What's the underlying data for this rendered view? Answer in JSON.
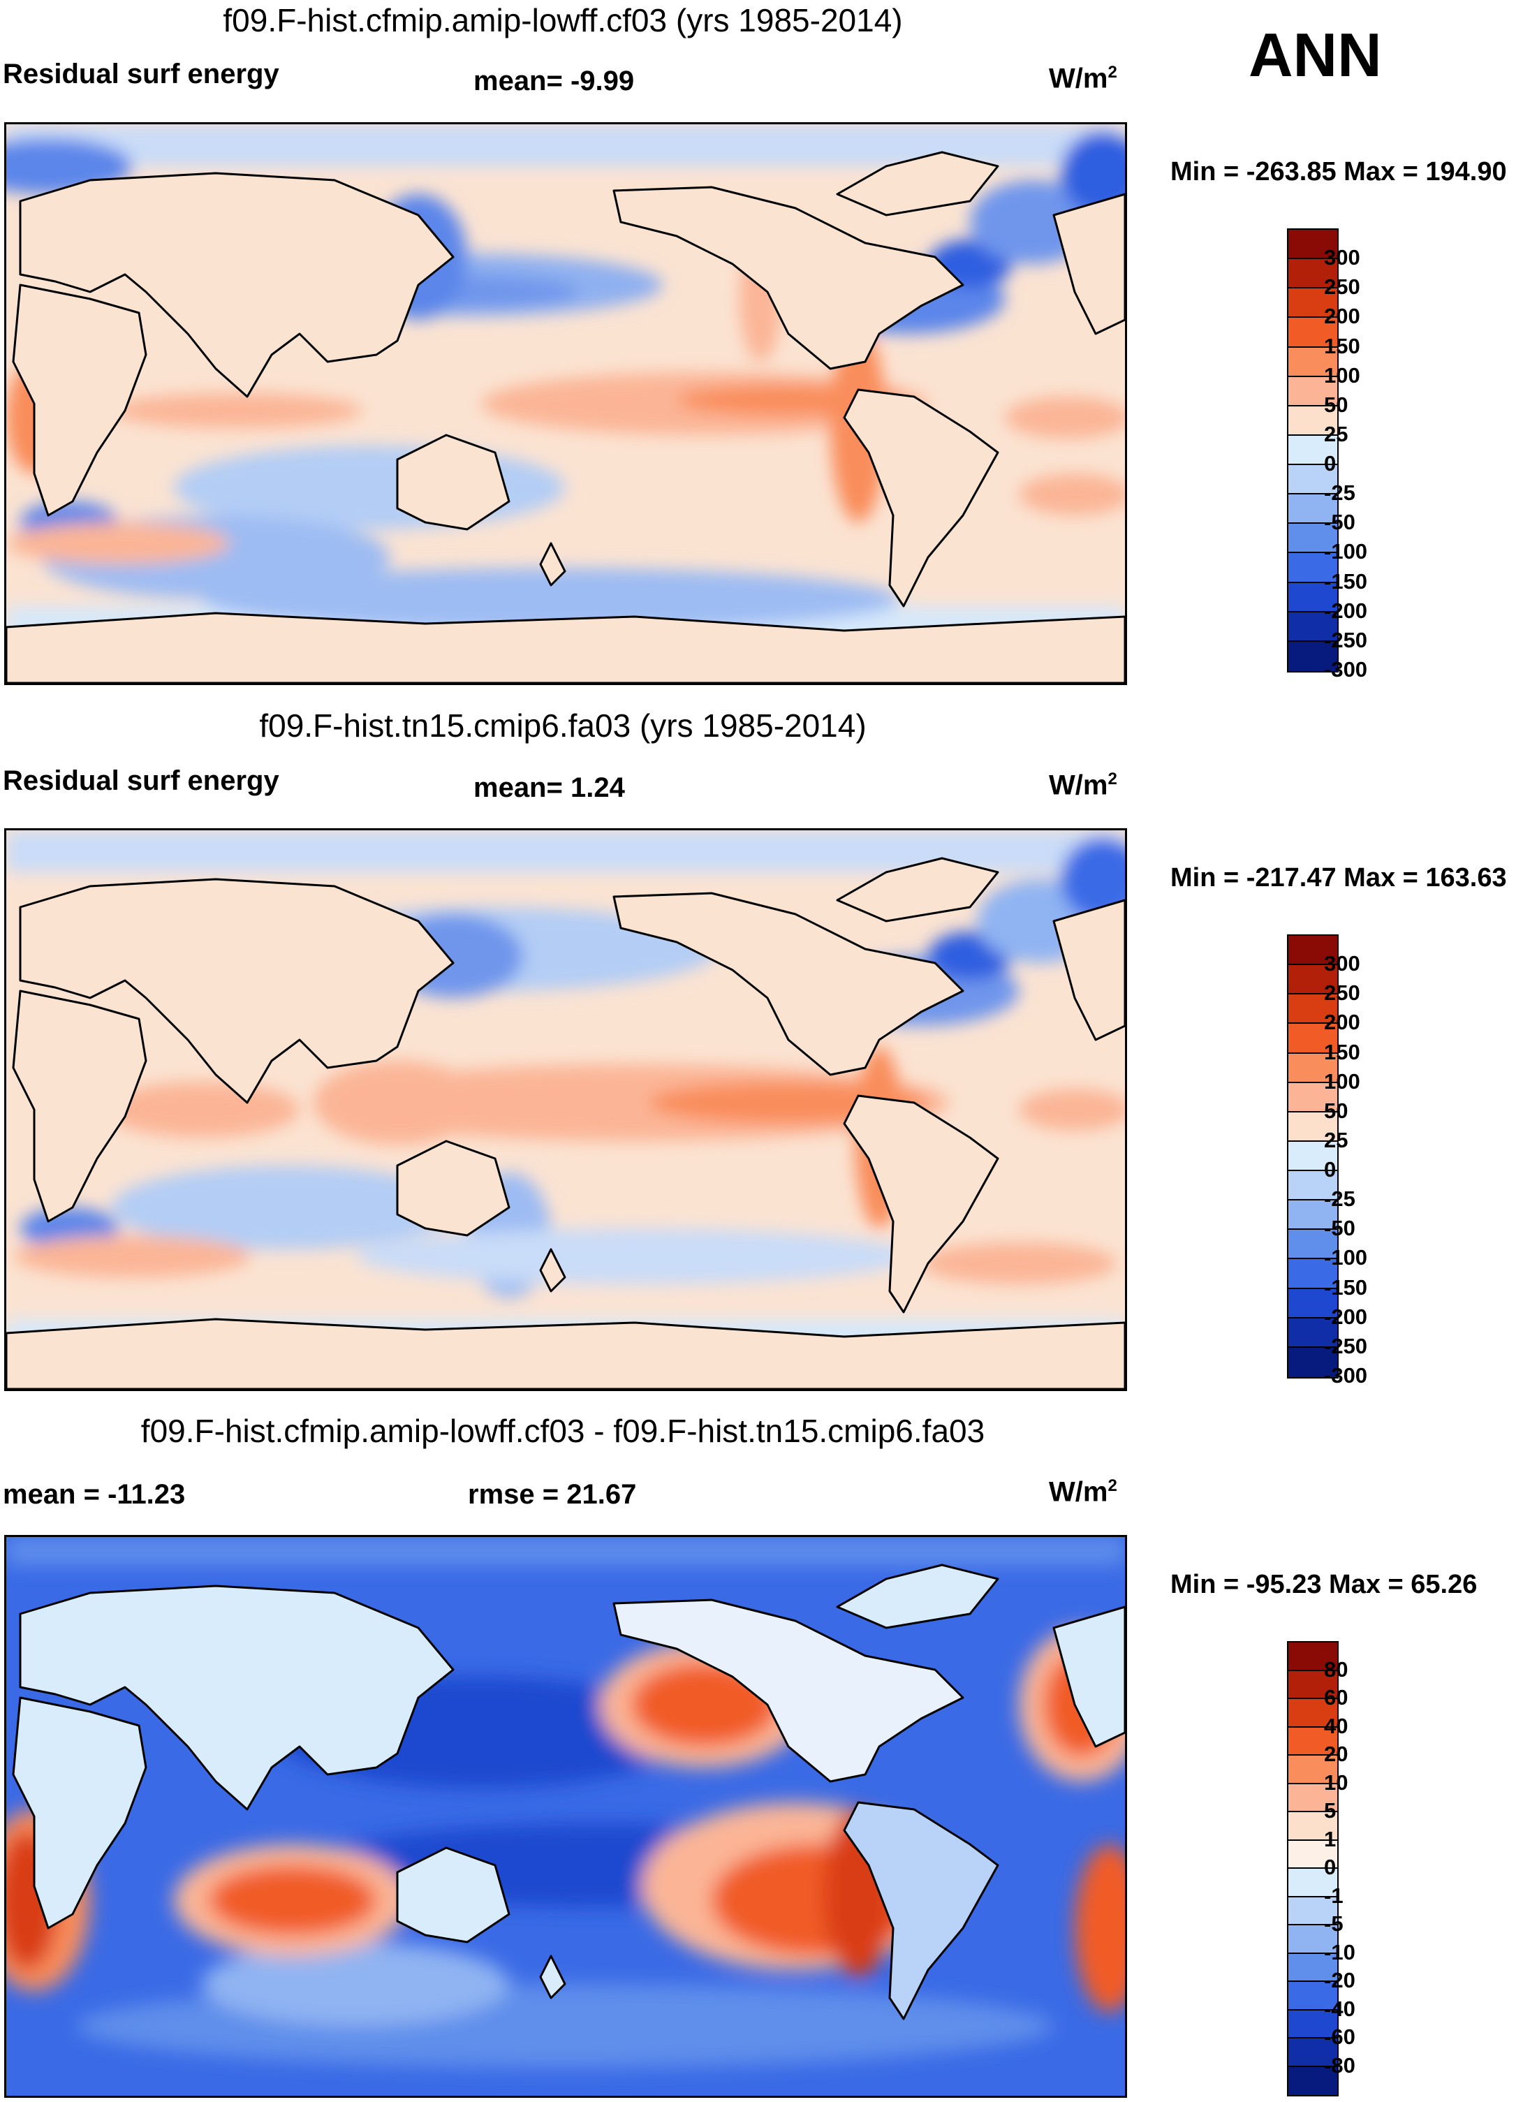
{
  "season": "ANN",
  "units_base": "W/m",
  "units_exp": "2",
  "panels": [
    {
      "title": "f09.F-hist.cfmip.amip-lowff.cf03 (yrs 1985-2014)",
      "left_label": "Residual surf energy",
      "center_label": "mean=  -9.99",
      "minmax": "Min = -263.85 Max = 194.90",
      "levels": [
        "300",
        "250",
        "200",
        "150",
        "100",
        "50",
        "25",
        "0",
        "-25",
        "-50",
        "-100",
        "-150",
        "-200",
        "-250",
        "-300"
      ],
      "colors": [
        "#8a0a06",
        "#b2200a",
        "#d93e12",
        "#f15c26",
        "#f98d5c",
        "#fbb596",
        "#fde0cc",
        "#d9ecfb",
        "#b8d3f7",
        "#90b4f2",
        "#5f8eeb",
        "#3a6ae6",
        "#1e48cf",
        "#0f2ea8",
        "#071a7e"
      ]
    },
    {
      "title": "f09.F-hist.tn15.cmip6.fa03 (yrs 1985-2014)",
      "left_label": "Residual surf energy",
      "center_label": "mean=   1.24",
      "minmax": "Min = -217.47 Max = 163.63",
      "levels": [
        "300",
        "250",
        "200",
        "150",
        "100",
        "50",
        "25",
        "0",
        "-25",
        "-50",
        "-100",
        "-150",
        "-200",
        "-250",
        "-300"
      ],
      "colors": [
        "#8a0a06",
        "#b2200a",
        "#d93e12",
        "#f15c26",
        "#f98d5c",
        "#fbb596",
        "#fde0cc",
        "#d9ecfb",
        "#b8d3f7",
        "#90b4f2",
        "#5f8eeb",
        "#3a6ae6",
        "#1e48cf",
        "#0f2ea8",
        "#071a7e"
      ]
    },
    {
      "title": "f09.F-hist.cfmip.amip-lowff.cf03 - f09.F-hist.tn15.cmip6.fa03",
      "left_label": "mean = -11.23",
      "center_label": "rmse =  21.67",
      "minmax": "Min = -95.23 Max =  65.26",
      "levels": [
        "80",
        "60",
        "40",
        "20",
        "10",
        "5",
        "1",
        "0",
        "-1",
        "-5",
        "-10",
        "-20",
        "-40",
        "-60",
        "-80"
      ],
      "colors": [
        "#8a0a06",
        "#b2200a",
        "#d93e12",
        "#f15c26",
        "#f98d5c",
        "#fbb596",
        "#fde0cc",
        "#fdf0e6",
        "#d9ecfb",
        "#b8d3f7",
        "#90b4f2",
        "#5f8eeb",
        "#3a6ae6",
        "#1e48cf",
        "#0f2ea8",
        "#071a7e"
      ]
    }
  ]
}
